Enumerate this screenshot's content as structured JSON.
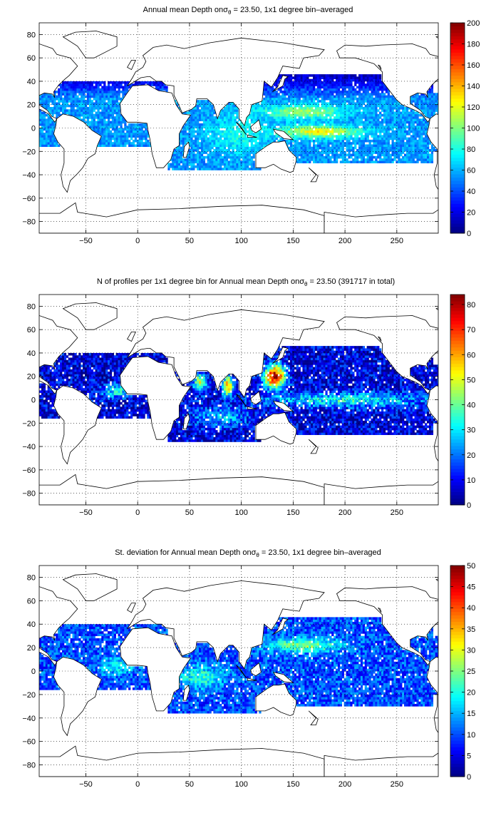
{
  "chart_data": [
    {
      "type": "heatmap",
      "title_pre": "Annual mean Depth on",
      "title_sym": "σ",
      "title_sub": "θ",
      "title_post": " = 23.50, 1x1 degree bin–averaged",
      "xlim": [
        -95,
        290
      ],
      "ylim": [
        -90,
        90
      ],
      "xticks": [
        -50,
        0,
        50,
        100,
        150,
        200,
        250
      ],
      "yticks": [
        -80,
        -60,
        -40,
        -20,
        0,
        20,
        40,
        60,
        80
      ],
      "grid": true,
      "colormap": "jet",
      "colorbar": {
        "min": 0,
        "max": 200,
        "ticks": [
          0,
          20,
          40,
          60,
          80,
          100,
          120,
          140,
          160,
          180,
          200
        ]
      },
      "field": "depth"
    },
    {
      "type": "heatmap",
      "title_pre": "N of profiles per 1x1 degree bin for Annual mean Depth on",
      "title_sym": "σ",
      "title_sub": "θ",
      "title_post": " = 23.50 (391717 in total)",
      "xlim": [
        -95,
        290
      ],
      "ylim": [
        -90,
        90
      ],
      "xticks": [
        -50,
        0,
        50,
        100,
        150,
        200,
        250
      ],
      "yticks": [
        -80,
        -60,
        -40,
        -20,
        0,
        20,
        40,
        60,
        80
      ],
      "grid": true,
      "colormap": "jet",
      "colorbar": {
        "min": 0,
        "max": 84,
        "ticks": [
          0,
          10,
          20,
          30,
          40,
          50,
          60,
          70,
          80
        ]
      },
      "field": "count"
    },
    {
      "type": "heatmap",
      "title_pre": "St. deviation for Annual mean Depth on",
      "title_sym": "σ",
      "title_sub": "θ",
      "title_post": " = 23.50, 1x1 degree bin–averaged",
      "xlim": [
        -95,
        290
      ],
      "ylim": [
        -90,
        90
      ],
      "xticks": [
        -50,
        0,
        50,
        100,
        150,
        200,
        250
      ],
      "yticks": [
        -80,
        -60,
        -40,
        -20,
        0,
        20,
        40,
        60,
        80
      ],
      "grid": true,
      "colormap": "jet",
      "colorbar": {
        "min": 0,
        "max": 50,
        "ticks": [
          0,
          5,
          10,
          15,
          20,
          25,
          30,
          35,
          40,
          45,
          50
        ]
      },
      "field": "std"
    }
  ]
}
